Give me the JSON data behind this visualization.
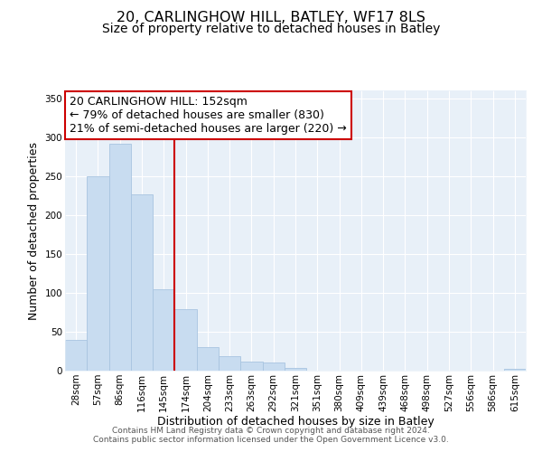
{
  "title": "20, CARLINGHOW HILL, BATLEY, WF17 8LS",
  "subtitle": "Size of property relative to detached houses in Batley",
  "xlabel": "Distribution of detached houses by size in Batley",
  "ylabel": "Number of detached properties",
  "bar_labels": [
    "28sqm",
    "57sqm",
    "86sqm",
    "116sqm",
    "145sqm",
    "174sqm",
    "204sqm",
    "233sqm",
    "263sqm",
    "292sqm",
    "321sqm",
    "351sqm",
    "380sqm",
    "409sqm",
    "439sqm",
    "468sqm",
    "498sqm",
    "527sqm",
    "556sqm",
    "586sqm",
    "615sqm"
  ],
  "bar_heights": [
    39,
    250,
    291,
    226,
    104,
    79,
    30,
    19,
    12,
    10,
    4,
    0,
    0,
    0,
    0,
    0,
    0,
    0,
    0,
    0,
    2
  ],
  "bar_color": "#c8dcf0",
  "bar_edge_color": "#a8c4e0",
  "vline_x": 4.5,
  "vline_color": "#cc0000",
  "annotation_text": "20 CARLINGHOW HILL: 152sqm\n← 79% of detached houses are smaller (830)\n21% of semi-detached houses are larger (220) →",
  "annotation_box_color": "white",
  "annotation_box_edge_color": "#cc0000",
  "ylim": [
    0,
    360
  ],
  "yticks": [
    0,
    50,
    100,
    150,
    200,
    250,
    300,
    350
  ],
  "footer_line1": "Contains HM Land Registry data © Crown copyright and database right 2024.",
  "footer_line2": "Contains public sector information licensed under the Open Government Licence v3.0.",
  "background_color": "#ffffff",
  "plot_bg_color": "#e8f0f8",
  "grid_color": "#ffffff",
  "title_fontsize": 11.5,
  "subtitle_fontsize": 10,
  "axis_label_fontsize": 9,
  "tick_fontsize": 7.5,
  "annotation_fontsize": 9,
  "footer_fontsize": 6.5
}
